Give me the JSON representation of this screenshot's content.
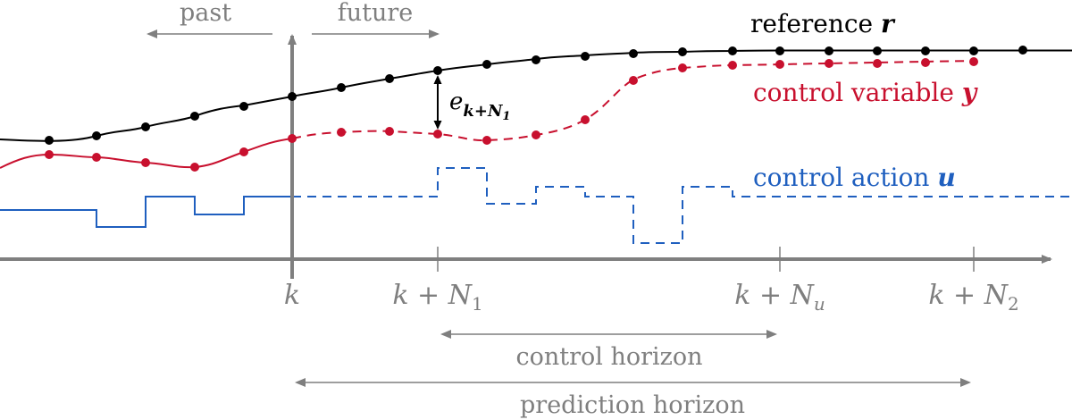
{
  "labels": {
    "past": "past",
    "future": "future",
    "reference": "reference",
    "reference_symbol": "r",
    "control_variable": "control variable",
    "control_variable_symbol": "y",
    "control_action": "control action",
    "control_action_symbol": "u",
    "error_base": "e",
    "error_sub": "k+N",
    "error_sub2": "1",
    "control_horizon": "control horizon",
    "prediction_horizon": "prediction horizon"
  },
  "ticks": [
    {
      "id": "k",
      "base": "k",
      "plus": "",
      "sub": ""
    },
    {
      "id": "kN1",
      "base": "k + N",
      "plus": "",
      "sub": "1"
    },
    {
      "id": "kNu",
      "base": "k + N",
      "plus": "",
      "sub": "u"
    },
    {
      "id": "kN2",
      "base": "k + N",
      "plus": "",
      "sub": "2"
    }
  ],
  "colors": {
    "axis": "#7f7f7f",
    "reference": "#000000",
    "control_variable": "#c8102e",
    "control_action": "#1f5fbf"
  }
}
